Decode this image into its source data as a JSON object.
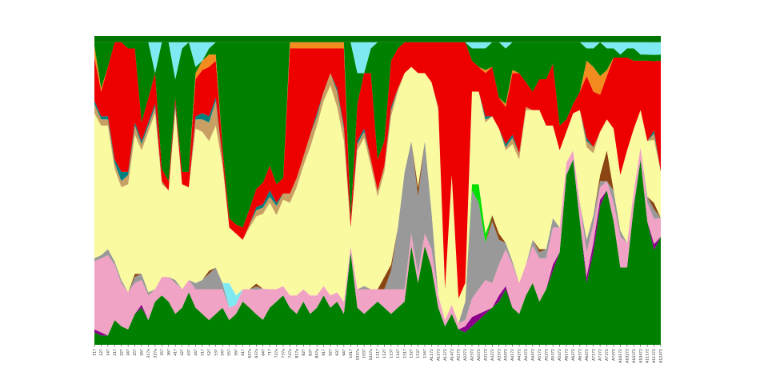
{
  "figure": {
    "background": "#ffffff"
  },
  "chart_data": {
    "type": "area",
    "stacked": true,
    "normalized_percent": true,
    "title": "",
    "xlabel": "",
    "ylabel": "",
    "grid": false,
    "legend": "none",
    "x_tick_rotation": -90,
    "ylim": [
      0,
      100
    ],
    "categories": [
      "117",
      "127",
      "147",
      "217",
      "227",
      "247",
      "257",
      "267",
      "317a",
      "327a",
      "357",
      "367",
      "417",
      "427",
      "437",
      "447",
      "517",
      "527",
      "537",
      "547",
      "557",
      "567",
      "617",
      "627a",
      "637a",
      "647",
      "717",
      "727a",
      "737a",
      "747a",
      "817a",
      "827",
      "837",
      "847a",
      "917",
      "927",
      "937",
      "947",
      "1017",
      "1027a",
      "1037",
      "1047a",
      "1117",
      "1127",
      "1137",
      "1147",
      "1517",
      "1527",
      "1537",
      "1547",
      "A1172",
      "A1272",
      "A1372",
      "A1472",
      "A2172",
      "A2272",
      "A2372",
      "A2472",
      "A3172",
      "A3272",
      "A3372",
      "A3472",
      "A4172",
      "A4272",
      "A4372",
      "A4472",
      "A5172",
      "A5272",
      "A5372",
      "A5472",
      "A6172",
      "A6272",
      "A6372",
      "A6472",
      "A7172",
      "A7272",
      "A7372",
      "A7472",
      "A10172",
      "A10272",
      "A10372",
      "A10472",
      "A11172",
      "A11372",
      "A12472"
    ],
    "series": [
      {
        "name": "dark-green-base",
        "color": "#008000",
        "values": [
          4,
          3,
          3,
          8,
          6,
          5,
          10,
          12,
          8,
          14,
          16,
          14,
          10,
          12,
          17,
          12,
          10,
          8,
          10,
          12,
          8,
          10,
          14,
          12,
          10,
          8,
          12,
          14,
          16,
          12,
          10,
          14,
          10,
          12,
          16,
          12,
          14,
          10,
          30,
          12,
          10,
          12,
          14,
          12,
          10,
          12,
          14,
          32,
          20,
          32,
          25,
          12,
          6,
          10,
          5,
          4,
          6,
          8,
          10,
          12,
          14,
          18,
          12,
          10,
          16,
          20,
          14,
          18,
          24,
          30,
          55,
          60,
          40,
          20,
          30,
          45,
          50,
          40,
          25,
          25,
          45,
          60,
          40,
          30,
          35
        ]
      },
      {
        "name": "purple",
        "color": "#8B008B",
        "values": [
          1,
          1,
          0,
          0,
          0,
          0,
          0,
          1,
          0,
          0,
          0,
          0,
          0,
          0,
          0,
          0,
          0,
          0,
          0,
          0,
          0,
          0,
          0,
          0,
          0,
          0,
          0,
          0,
          0,
          0,
          0,
          0,
          0,
          0,
          0,
          0,
          0,
          0,
          0,
          0,
          0,
          0,
          0,
          0,
          0,
          0,
          0,
          0,
          0,
          0,
          0,
          0,
          0,
          0,
          0,
          2,
          3,
          2,
          1,
          0,
          2,
          1,
          0,
          0,
          0,
          0,
          0,
          0,
          2,
          0,
          0,
          0,
          0,
          2,
          3,
          2,
          0,
          0,
          0,
          0,
          0,
          0,
          0,
          2,
          0
        ]
      },
      {
        "name": "pink",
        "color": "#F0A3C4",
        "values": [
          22,
          24,
          26,
          18,
          14,
          12,
          10,
          8,
          8,
          4,
          6,
          8,
          10,
          6,
          4,
          6,
          8,
          10,
          8,
          6,
          4,
          3,
          4,
          6,
          8,
          10,
          6,
          4,
          3,
          4,
          6,
          4,
          6,
          4,
          3,
          4,
          3,
          4,
          2,
          6,
          8,
          6,
          4,
          6,
          8,
          6,
          4,
          4,
          3,
          4,
          6,
          4,
          2,
          3,
          2,
          2,
          6,
          8,
          10,
          8,
          10,
          12,
          14,
          10,
          10,
          12,
          14,
          10,
          12,
          8,
          4,
          3,
          6,
          8,
          6,
          4,
          3,
          6,
          10,
          8,
          5,
          4,
          6,
          8,
          6
        ]
      },
      {
        "name": "gray",
        "color": "#999999",
        "values": [
          1,
          1,
          2,
          1,
          1,
          0,
          2,
          2,
          1,
          0,
          0,
          0,
          1,
          0,
          0,
          2,
          3,
          5,
          7,
          2,
          0,
          0,
          0,
          0,
          1,
          0,
          0,
          0,
          0,
          0,
          0,
          0,
          0,
          0,
          0,
          0,
          0,
          0,
          0,
          0,
          1,
          0,
          0,
          0,
          6,
          20,
          38,
          30,
          25,
          30,
          12,
          0,
          0,
          0,
          0,
          6,
          35,
          28,
          12,
          20,
          8,
          2,
          1,
          0,
          0,
          2,
          2,
          3,
          3,
          0,
          0,
          0,
          0,
          4,
          3,
          2,
          0,
          4,
          2,
          0,
          0,
          0,
          2,
          3,
          0
        ]
      },
      {
        "name": "brown",
        "color": "#8B4513",
        "values": [
          0,
          0,
          0,
          0,
          0,
          0,
          1,
          0,
          0,
          0,
          0,
          0,
          0,
          0,
          0,
          0,
          0,
          1,
          0,
          0,
          0,
          0,
          0,
          0,
          1,
          0,
          0,
          0,
          0,
          0,
          0,
          0,
          0,
          0,
          0,
          0,
          0,
          0,
          0,
          0,
          0,
          0,
          0,
          4,
          2,
          0,
          0,
          0,
          3,
          0,
          0,
          0,
          0,
          0,
          0,
          0,
          0,
          0,
          0,
          2,
          2,
          0,
          0,
          0,
          0,
          0,
          1,
          0,
          0,
          0,
          0,
          0,
          0,
          0,
          0,
          2,
          10,
          0,
          0,
          0,
          0,
          0,
          0,
          2,
          0
        ]
      },
      {
        "name": "bright-green",
        "color": "#00E000",
        "values": [
          0,
          0,
          0,
          0,
          0,
          0,
          0,
          0,
          0,
          0,
          0,
          0,
          0,
          0,
          0,
          0,
          0,
          0,
          0,
          0,
          0,
          0,
          0,
          0,
          0,
          0,
          0,
          0,
          0,
          0,
          0,
          0,
          0,
          0,
          0,
          0,
          0,
          0,
          0,
          0,
          0,
          0,
          0,
          0,
          0,
          0,
          0,
          0,
          0,
          0,
          0,
          0,
          0,
          0,
          0,
          0,
          2,
          6,
          3,
          0,
          0,
          0,
          0,
          0,
          0,
          0,
          0,
          0,
          0,
          0,
          0,
          0,
          0,
          0,
          0,
          0,
          0,
          0,
          0,
          0,
          0,
          0,
          0,
          0,
          0
        ]
      },
      {
        "name": "cyan-lower",
        "color": "#7FE9F2",
        "values": [
          0,
          0,
          0,
          0,
          0,
          0,
          0,
          0,
          0,
          0,
          0,
          0,
          0,
          0,
          0,
          0,
          0,
          0,
          0,
          0,
          8,
          3,
          0,
          0,
          0,
          0,
          0,
          0,
          0,
          0,
          0,
          0,
          0,
          0,
          0,
          0,
          0,
          0,
          0,
          0,
          0,
          0,
          0,
          0,
          0,
          0,
          0,
          0,
          0,
          0,
          0,
          0,
          0,
          0,
          0,
          0,
          0,
          0,
          0,
          0,
          0,
          0,
          0,
          0,
          0,
          0,
          0,
          0,
          0,
          0,
          0,
          0,
          0,
          0,
          0,
          0,
          0,
          0,
          0,
          0,
          0,
          0,
          0,
          0,
          0
        ]
      },
      {
        "name": "pale-yellow",
        "color": "#FAFAA0",
        "values": [
          47,
          42,
          40,
          30,
          30,
          35,
          45,
          40,
          52,
          57,
          30,
          28,
          55,
          34,
          30,
          50,
          48,
          42,
          46,
          38,
          18,
          20,
          16,
          20,
          22,
          24,
          28,
          24,
          28,
          30,
          35,
          40,
          48,
          55,
          60,
          68,
          60,
          52,
          6,
          45,
          48,
          40,
          30,
          34,
          48,
          44,
          32,
          24,
          37,
          22,
          42,
          60,
          10,
          42,
          8,
          6,
          30,
          30,
          36,
          32,
          34,
          30,
          38,
          40,
          50,
          42,
          45,
          40,
          30,
          25,
          10,
          12,
          30,
          30,
          20,
          14,
          10,
          20,
          18,
          30,
          20,
          12,
          18,
          20,
          15
        ]
      },
      {
        "name": "tan",
        "color": "#C9A063",
        "values": [
          3,
          2,
          2,
          2,
          2,
          3,
          3,
          2,
          2,
          2,
          1,
          0,
          1,
          0,
          0,
          3,
          4,
          6,
          8,
          2,
          0,
          0,
          0,
          1,
          2,
          2,
          2,
          3,
          2,
          3,
          3,
          3,
          4,
          3,
          3,
          4,
          5,
          4,
          0,
          2,
          2,
          2,
          2,
          2,
          2,
          1,
          0,
          0,
          0,
          0,
          0,
          1,
          0,
          0,
          0,
          0,
          0,
          0,
          1,
          0,
          0,
          1,
          2,
          2,
          1,
          0,
          0,
          0,
          0,
          0,
          0,
          0,
          0,
          2,
          2,
          0,
          0,
          0,
          0,
          0,
          0,
          0,
          0,
          2,
          0
        ]
      },
      {
        "name": "teal",
        "color": "#007F7F",
        "values": [
          1,
          1,
          1,
          1,
          3,
          1,
          1,
          1,
          1,
          1,
          0,
          0,
          1,
          0,
          0,
          1,
          2,
          2,
          1,
          0,
          0,
          0,
          0,
          0,
          1,
          1,
          2,
          1,
          0,
          0,
          0,
          0,
          0,
          1,
          0,
          0,
          1,
          1,
          0,
          1,
          1,
          0,
          0,
          0,
          1,
          0,
          0,
          0,
          0,
          0,
          0,
          0,
          0,
          0,
          0,
          0,
          0,
          0,
          1,
          0,
          0,
          1,
          1,
          0,
          0,
          0,
          0,
          0,
          0,
          0,
          0,
          0,
          0,
          1,
          0,
          0,
          0,
          0,
          0,
          0,
          0,
          0,
          0,
          1,
          0
        ]
      },
      {
        "name": "red",
        "color": "#EE0000",
        "values": [
          14,
          8,
          16,
          38,
          42,
          40,
          24,
          6,
          8,
          10,
          4,
          3,
          2,
          4,
          5,
          12,
          14,
          16,
          12,
          4,
          3,
          3,
          4,
          5,
          6,
          7,
          8,
          6,
          5,
          47,
          42,
          35,
          28,
          21,
          14,
          8,
          13,
          25,
          3,
          12,
          18,
          28,
          10,
          8,
          15,
          13,
          10,
          8,
          10,
          10,
          13,
          21,
          80,
          43,
          83,
          78,
          10,
          8,
          14,
          16,
          10,
          12,
          20,
          26,
          8,
          6,
          10,
          15,
          20,
          8,
          4,
          3,
          6,
          20,
          18,
          12,
          14,
          23,
          38,
          30,
          22,
          16,
          26,
          22,
          36
        ]
      },
      {
        "name": "orange",
        "color": "#F28C1E",
        "values": [
          4,
          1,
          0,
          0,
          0,
          0,
          0,
          0,
          0,
          0,
          0,
          0,
          0,
          0,
          0,
          2,
          3,
          4,
          2,
          0,
          0,
          0,
          0,
          0,
          0,
          0,
          0,
          0,
          0,
          2,
          2,
          2,
          2,
          2,
          2,
          2,
          2,
          2,
          0,
          0,
          0,
          0,
          0,
          0,
          0,
          0,
          0,
          0,
          0,
          0,
          0,
          0,
          0,
          0,
          0,
          0,
          0,
          0,
          1,
          0,
          0,
          1,
          1,
          0,
          0,
          0,
          0,
          0,
          0,
          0,
          0,
          0,
          0,
          5,
          8,
          6,
          2,
          0,
          0,
          0,
          0,
          0,
          0,
          0,
          0
        ]
      },
      {
        "name": "dark-green-top",
        "color": "#008000",
        "values": [
          1,
          15,
          8,
          0,
          0,
          2,
          2,
          26,
          18,
          0,
          41,
          45,
          6,
          40,
          42,
          2,
          0,
          2,
          4,
          34,
          57,
          59,
          60,
          54,
          48,
          45,
          40,
          46,
          44,
          0,
          0,
          0,
          0,
          0,
          0,
          0,
          0,
          0,
          57,
          10,
          0,
          8,
          38,
          32,
          6,
          2,
          0,
          0,
          0,
          0,
          0,
          0,
          0,
          0,
          0,
          0,
          4,
          6,
          7,
          8,
          18,
          18,
          9,
          10,
          13,
          16,
          12,
          12,
          7,
          27,
          25,
          20,
          16,
          4,
          6,
          11,
          7,
          3,
          1,
          3,
          4,
          2,
          2,
          2,
          2
        ]
      },
      {
        "name": "cyan-top",
        "color": "#7FE9F2",
        "values": [
          0,
          0,
          0,
          0,
          0,
          0,
          0,
          0,
          0,
          10,
          0,
          0,
          12,
          2,
          0,
          8,
          6,
          2,
          0,
          0,
          0,
          0,
          0,
          0,
          0,
          0,
          0,
          0,
          0,
          0,
          0,
          0,
          0,
          0,
          0,
          0,
          0,
          0,
          0,
          10,
          10,
          2,
          0,
          0,
          0,
          0,
          0,
          0,
          0,
          0,
          0,
          0,
          0,
          0,
          0,
          0,
          2,
          2,
          2,
          0,
          0,
          2,
          0,
          0,
          0,
          0,
          0,
          0,
          0,
          0,
          0,
          0,
          0,
          2,
          2,
          0,
          2,
          2,
          4,
          2,
          2,
          4,
          4,
          4,
          4
        ]
      },
      {
        "name": "dark-green-cap",
        "color": "#007500",
        "values": [
          2,
          2,
          2,
          2,
          2,
          2,
          2,
          2,
          2,
          2,
          2,
          2,
          2,
          2,
          2,
          2,
          2,
          2,
          2,
          2,
          2,
          2,
          2,
          2,
          2,
          2,
          2,
          2,
          2,
          2,
          2,
          2,
          2,
          2,
          2,
          2,
          2,
          2,
          2,
          2,
          2,
          2,
          2,
          2,
          2,
          2,
          2,
          2,
          2,
          2,
          2,
          2,
          2,
          2,
          2,
          2,
          2,
          2,
          2,
          2,
          2,
          2,
          2,
          2,
          2,
          2,
          2,
          2,
          2,
          2,
          2,
          2,
          2,
          2,
          2,
          2,
          2,
          2,
          2,
          2,
          2,
          2,
          2,
          2,
          2
        ]
      }
    ]
  }
}
